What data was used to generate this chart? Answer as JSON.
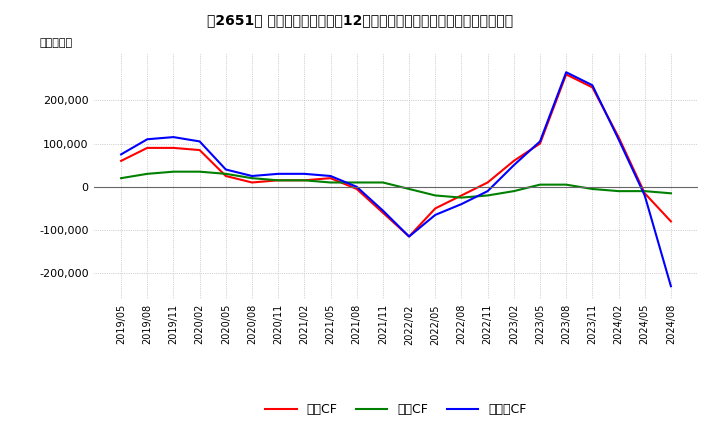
{
  "title": "【2651】 キャッシュフローの12か月移動合計の対前年同期増減額の推移",
  "ylabel": "（百万円）",
  "legend": [
    "営業CF",
    "投資CF",
    "フリーCF"
  ],
  "line_colors": [
    "#ff0000",
    "#008000",
    "#0000ff"
  ],
  "ylim": [
    -260000,
    310000
  ],
  "yticks": [
    -200000,
    -100000,
    0,
    100000,
    200000
  ],
  "background_color": "#ffffff",
  "grid_color": "#aaaaaa",
  "営業CF": [
    60000,
    90000,
    90000,
    85000,
    25000,
    10000,
    15000,
    15000,
    20000,
    -5000,
    -60000,
    -115000,
    -50000,
    -20000,
    10000,
    60000,
    100000,
    260000,
    230000,
    115000,
    -15000,
    -80000
  ],
  "投資CF": [
    20000,
    30000,
    35000,
    35000,
    30000,
    20000,
    15000,
    15000,
    10000,
    10000,
    10000,
    -5000,
    -20000,
    -25000,
    -20000,
    -10000,
    5000,
    5000,
    -5000,
    -10000,
    -10000,
    -15000
  ],
  "フリーCF": [
    75000,
    110000,
    115000,
    105000,
    40000,
    25000,
    30000,
    30000,
    25000,
    0,
    -55000,
    -115000,
    -65000,
    -40000,
    -10000,
    50000,
    105000,
    265000,
    235000,
    110000,
    -20000,
    -230000
  ],
  "xtick_labels": [
    "2019/05",
    "2019/08",
    "2019/11",
    "2020/02",
    "2020/05",
    "2020/08",
    "2020/11",
    "2021/02",
    "2021/05",
    "2021/08",
    "2021/11",
    "2022/02",
    "2022/05",
    "2022/08",
    "2022/11",
    "2023/02",
    "2023/05",
    "2023/08",
    "2023/11",
    "2024/02",
    "2024/05",
    "2024/08"
  ]
}
